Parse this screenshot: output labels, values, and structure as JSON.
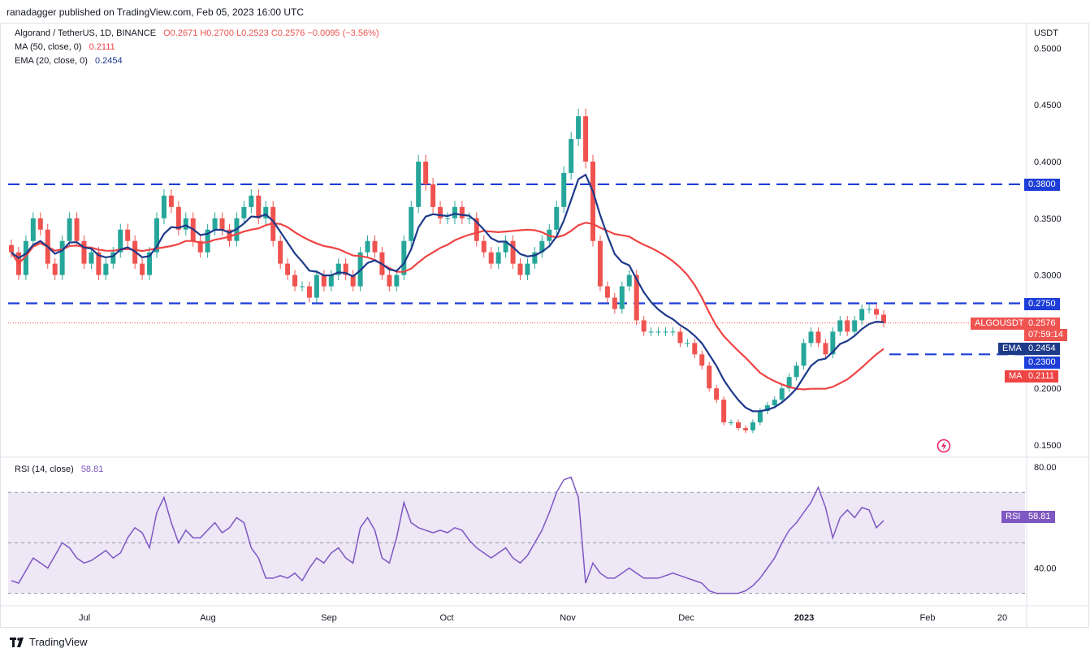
{
  "header": {
    "published": "ranadagger published on TradingView.com, Feb 05, 2023 16:00 UTC"
  },
  "legend": {
    "symbol": "Algorand / TetherUS, 1D, BINANCE",
    "ohlc": "O0.2671  H0.2700  L0.2523  C0.2576  −0.0095 (−3.56%)",
    "ma_label": "MA (50, close, 0)",
    "ma_value": "0.2111",
    "ema_label": "EMA (20, close, 0)",
    "ema_value": "0.2454",
    "rsi_label": "RSI (14, close)",
    "rsi_value": "58.81"
  },
  "axis": {
    "currency": "USDT",
    "price_ticks": [
      "0.5000",
      "0.4500",
      "0.4000",
      "0.3500",
      "0.3000",
      "0.2000",
      "0.1500"
    ],
    "rsi_ticks": [
      "80.00",
      "40.00"
    ],
    "time_ticks": [
      "Jul",
      "Aug",
      "Sep",
      "Oct",
      "Nov",
      "Dec",
      "2023",
      "Feb",
      "20"
    ]
  },
  "tags": {
    "level_top": "0.3800",
    "level_mid": "0.2750",
    "symbol": "ALGOUSDT",
    "last_price": "0.2576",
    "countdown": "07:59:14",
    "ema": "EMA",
    "ema_value": "0.2454",
    "support": "0.2300",
    "ma": "MA",
    "ma_value": "0.2111",
    "rsi": "RSI",
    "rsi_value": "58.81"
  },
  "footer": {
    "brand": "TradingView"
  },
  "colors": {
    "up": "#26a69a",
    "down": "#ef5350",
    "ema": "#1e3a8a",
    "ma": "#ef4444",
    "level": "#1d3ed8",
    "rsi": "#7e57c2",
    "rsi_band": "#ede7f6"
  },
  "chart_data": {
    "type": "candlestick",
    "price_ylim": [
      0.14,
      0.52
    ],
    "rsi_ylim": [
      26,
      82
    ],
    "horizontal_levels": [
      0.38,
      0.275,
      0.23
    ],
    "last_close": 0.2576,
    "ema20_last": 0.2454,
    "ma50_last": 0.2111,
    "rsi_last": 58.81,
    "rsi_bands": [
      70,
      50,
      30
    ],
    "close_series": [
      0.32,
      0.3,
      0.33,
      0.35,
      0.34,
      0.31,
      0.3,
      0.33,
      0.35,
      0.33,
      0.31,
      0.32,
      0.3,
      0.31,
      0.32,
      0.34,
      0.33,
      0.31,
      0.3,
      0.32,
      0.35,
      0.37,
      0.36,
      0.34,
      0.35,
      0.33,
      0.32,
      0.34,
      0.35,
      0.34,
      0.33,
      0.35,
      0.36,
      0.37,
      0.35,
      0.36,
      0.33,
      0.31,
      0.3,
      0.29,
      0.29,
      0.28,
      0.3,
      0.29,
      0.3,
      0.31,
      0.3,
      0.29,
      0.32,
      0.33,
      0.32,
      0.3,
      0.29,
      0.3,
      0.33,
      0.36,
      0.4,
      0.38,
      0.36,
      0.35,
      0.35,
      0.36,
      0.35,
      0.35,
      0.33,
      0.32,
      0.31,
      0.32,
      0.33,
      0.31,
      0.3,
      0.31,
      0.32,
      0.33,
      0.34,
      0.36,
      0.39,
      0.42,
      0.44,
      0.4,
      0.33,
      0.29,
      0.28,
      0.27,
      0.29,
      0.3,
      0.26,
      0.25,
      0.25,
      0.25,
      0.25,
      0.25,
      0.24,
      0.24,
      0.23,
      0.22,
      0.2,
      0.19,
      0.17,
      0.17,
      0.165,
      0.163,
      0.17,
      0.18,
      0.185,
      0.19,
      0.2,
      0.21,
      0.22,
      0.24,
      0.25,
      0.24,
      0.23,
      0.25,
      0.26,
      0.25,
      0.26,
      0.27,
      0.27,
      0.265,
      0.2576
    ],
    "rsi_series": [
      35,
      34,
      39,
      44,
      42,
      40,
      45,
      50,
      48,
      44,
      42,
      43,
      45,
      47,
      44,
      46,
      52,
      56,
      54,
      48,
      62,
      68,
      58,
      50,
      55,
      52,
      52,
      55,
      58,
      54,
      56,
      60,
      58,
      48,
      44,
      36,
      36,
      37,
      36,
      38,
      35,
      40,
      44,
      42,
      46,
      48,
      44,
      42,
      56,
      60,
      55,
      44,
      42,
      52,
      66,
      58,
      56,
      55,
      54,
      55,
      54,
      56,
      55,
      51,
      48,
      46,
      44,
      46,
      48,
      44,
      42,
      45,
      50,
      55,
      62,
      70,
      75,
      76,
      68,
      34,
      42,
      38,
      36,
      36,
      38,
      40,
      38,
      36,
      36,
      36,
      37,
      38,
      37,
      36,
      35,
      34,
      31,
      30,
      30,
      30,
      30,
      31,
      33,
      36,
      40,
      44,
      50,
      55,
      58,
      62,
      66,
      72,
      64,
      52,
      60,
      63,
      60,
      64,
      63,
      56,
      58.81
    ]
  }
}
